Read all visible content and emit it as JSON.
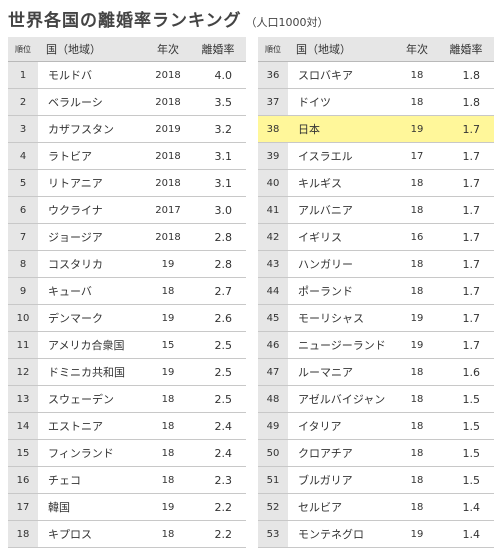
{
  "title": "世界各国の離婚率ランキング",
  "unit": "（人口1000対）",
  "headers": {
    "rank": "順位",
    "country": "国（地域）",
    "year": "年次",
    "rate": "離婚率"
  },
  "left_rows": [
    {
      "rank": "1",
      "country": "モルドバ",
      "year": "2018",
      "rate": "4.0"
    },
    {
      "rank": "2",
      "country": "ベラルーシ",
      "year": "2018",
      "rate": "3.5"
    },
    {
      "rank": "3",
      "country": "カザフスタン",
      "year": "2019",
      "rate": "3.2"
    },
    {
      "rank": "4",
      "country": "ラトビア",
      "year": "2018",
      "rate": "3.1"
    },
    {
      "rank": "5",
      "country": "リトアニア",
      "year": "2018",
      "rate": "3.1"
    },
    {
      "rank": "6",
      "country": "ウクライナ",
      "year": "2017",
      "rate": "3.0"
    },
    {
      "rank": "7",
      "country": "ジョージア",
      "year": "2018",
      "rate": "2.8"
    },
    {
      "rank": "8",
      "country": "コスタリカ",
      "year": "19",
      "rate": "2.8"
    },
    {
      "rank": "9",
      "country": "キューバ",
      "year": "18",
      "rate": "2.7"
    },
    {
      "rank": "10",
      "country": "デンマーク",
      "year": "19",
      "rate": "2.6"
    },
    {
      "rank": "11",
      "country": "アメリカ合衆国",
      "year": "15",
      "rate": "2.5"
    },
    {
      "rank": "12",
      "country": "ドミニカ共和国",
      "year": "19",
      "rate": "2.5"
    },
    {
      "rank": "13",
      "country": "スウェーデン",
      "year": "18",
      "rate": "2.5"
    },
    {
      "rank": "14",
      "country": "エストニア",
      "year": "18",
      "rate": "2.4"
    },
    {
      "rank": "15",
      "country": "フィンランド",
      "year": "18",
      "rate": "2.4"
    },
    {
      "rank": "16",
      "country": "チェコ",
      "year": "18",
      "rate": "2.3"
    },
    {
      "rank": "17",
      "country": "韓国",
      "year": "19",
      "rate": "2.2"
    },
    {
      "rank": "18",
      "country": "キプロス",
      "year": "18",
      "rate": "2.2"
    }
  ],
  "right_rows": [
    {
      "rank": "36",
      "country": "スロバキア",
      "year": "18",
      "rate": "1.8"
    },
    {
      "rank": "37",
      "country": "ドイツ",
      "year": "18",
      "rate": "1.8"
    },
    {
      "rank": "38",
      "country": "日本",
      "year": "19",
      "rate": "1.7",
      "highlight": true
    },
    {
      "rank": "39",
      "country": "イスラエル",
      "year": "17",
      "rate": "1.7"
    },
    {
      "rank": "40",
      "country": "キルギス",
      "year": "18",
      "rate": "1.7"
    },
    {
      "rank": "41",
      "country": "アルバニア",
      "year": "18",
      "rate": "1.7"
    },
    {
      "rank": "42",
      "country": "イギリス",
      "year": "16",
      "rate": "1.7"
    },
    {
      "rank": "43",
      "country": "ハンガリー",
      "year": "18",
      "rate": "1.7"
    },
    {
      "rank": "44",
      "country": "ポーランド",
      "year": "18",
      "rate": "1.7"
    },
    {
      "rank": "45",
      "country": "モーリシャス",
      "year": "19",
      "rate": "1.7"
    },
    {
      "rank": "46",
      "country": "ニュージーランド",
      "year": "19",
      "rate": "1.7"
    },
    {
      "rank": "47",
      "country": "ルーマニア",
      "year": "18",
      "rate": "1.6"
    },
    {
      "rank": "48",
      "country": "アゼルバイジャン",
      "year": "18",
      "rate": "1.5"
    },
    {
      "rank": "49",
      "country": "イタリア",
      "year": "18",
      "rate": "1.5"
    },
    {
      "rank": "50",
      "country": "クロアチア",
      "year": "18",
      "rate": "1.5"
    },
    {
      "rank": "51",
      "country": "ブルガリア",
      "year": "18",
      "rate": "1.5"
    },
    {
      "rank": "52",
      "country": "セルビア",
      "year": "18",
      "rate": "1.4"
    },
    {
      "rank": "53",
      "country": "モンテネグロ",
      "year": "19",
      "rate": "1.4"
    }
  ],
  "highlight_color": "#fff79a"
}
